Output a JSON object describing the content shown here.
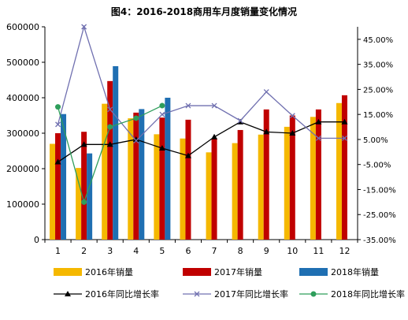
{
  "chart_data": {
    "type": "bar",
    "title": "图4：2016-2018商用车月度销量变化情况",
    "categories": [
      "1",
      "2",
      "3",
      "4",
      "5",
      "6",
      "7",
      "8",
      "9",
      "10",
      "11",
      "12"
    ],
    "left_axis": {
      "min": 0,
      "max": 600000,
      "step": 100000,
      "ticks": [
        "0",
        "100000",
        "200000",
        "300000",
        "400000",
        "500000",
        "600000"
      ]
    },
    "right_axis": {
      "min": -35,
      "max": 50,
      "step": 10,
      "ticks": [
        "-35.00%",
        "-25.00%",
        "-15.00%",
        "-5.00%",
        "5.00%",
        "15.00%",
        "25.00%",
        "35.00%",
        "45.00%"
      ]
    },
    "series": [
      {
        "name": "2016年销量",
        "kind": "bar",
        "color": "#F5B800",
        "values": [
          270000,
          202000,
          383000,
          342000,
          297000,
          285000,
          246000,
          272000,
          296000,
          318000,
          346000,
          385000
        ]
      },
      {
        "name": "2017年销量",
        "kind": "bar",
        "color": "#C00000",
        "values": [
          300000,
          304000,
          447000,
          358000,
          344000,
          338000,
          286000,
          309000,
          367000,
          350000,
          367000,
          407000
        ]
      },
      {
        "name": "2018年销量",
        "kind": "bar",
        "color": "#1F6FB2",
        "values": [
          354000,
          243000,
          489000,
          368000,
          400000,
          null,
          null,
          null,
          null,
          null,
          null,
          null
        ]
      },
      {
        "name": "2016年同比增长率",
        "kind": "line",
        "color": "#000000",
        "marker": "triangle",
        "values": [
          -4.0,
          3.0,
          3.0,
          5.0,
          1.5,
          -1.5,
          6.0,
          12.0,
          8.0,
          7.5,
          12.0,
          12.0
        ]
      },
      {
        "name": "2017年同比增长率",
        "kind": "line",
        "color": "#7070B0",
        "marker": "x",
        "values": [
          11.0,
          50.0,
          17.0,
          4.5,
          15.0,
          18.5,
          18.5,
          12.5,
          24.0,
          14.5,
          5.5,
          5.5
        ]
      },
      {
        "name": "2018年同比增长率",
        "kind": "line",
        "color": "#2E9E5B",
        "marker": "circle",
        "values": [
          18.0,
          -20.0,
          10.0,
          13.5,
          18.5,
          null,
          null,
          null,
          null,
          null,
          null,
          null
        ]
      }
    ]
  }
}
